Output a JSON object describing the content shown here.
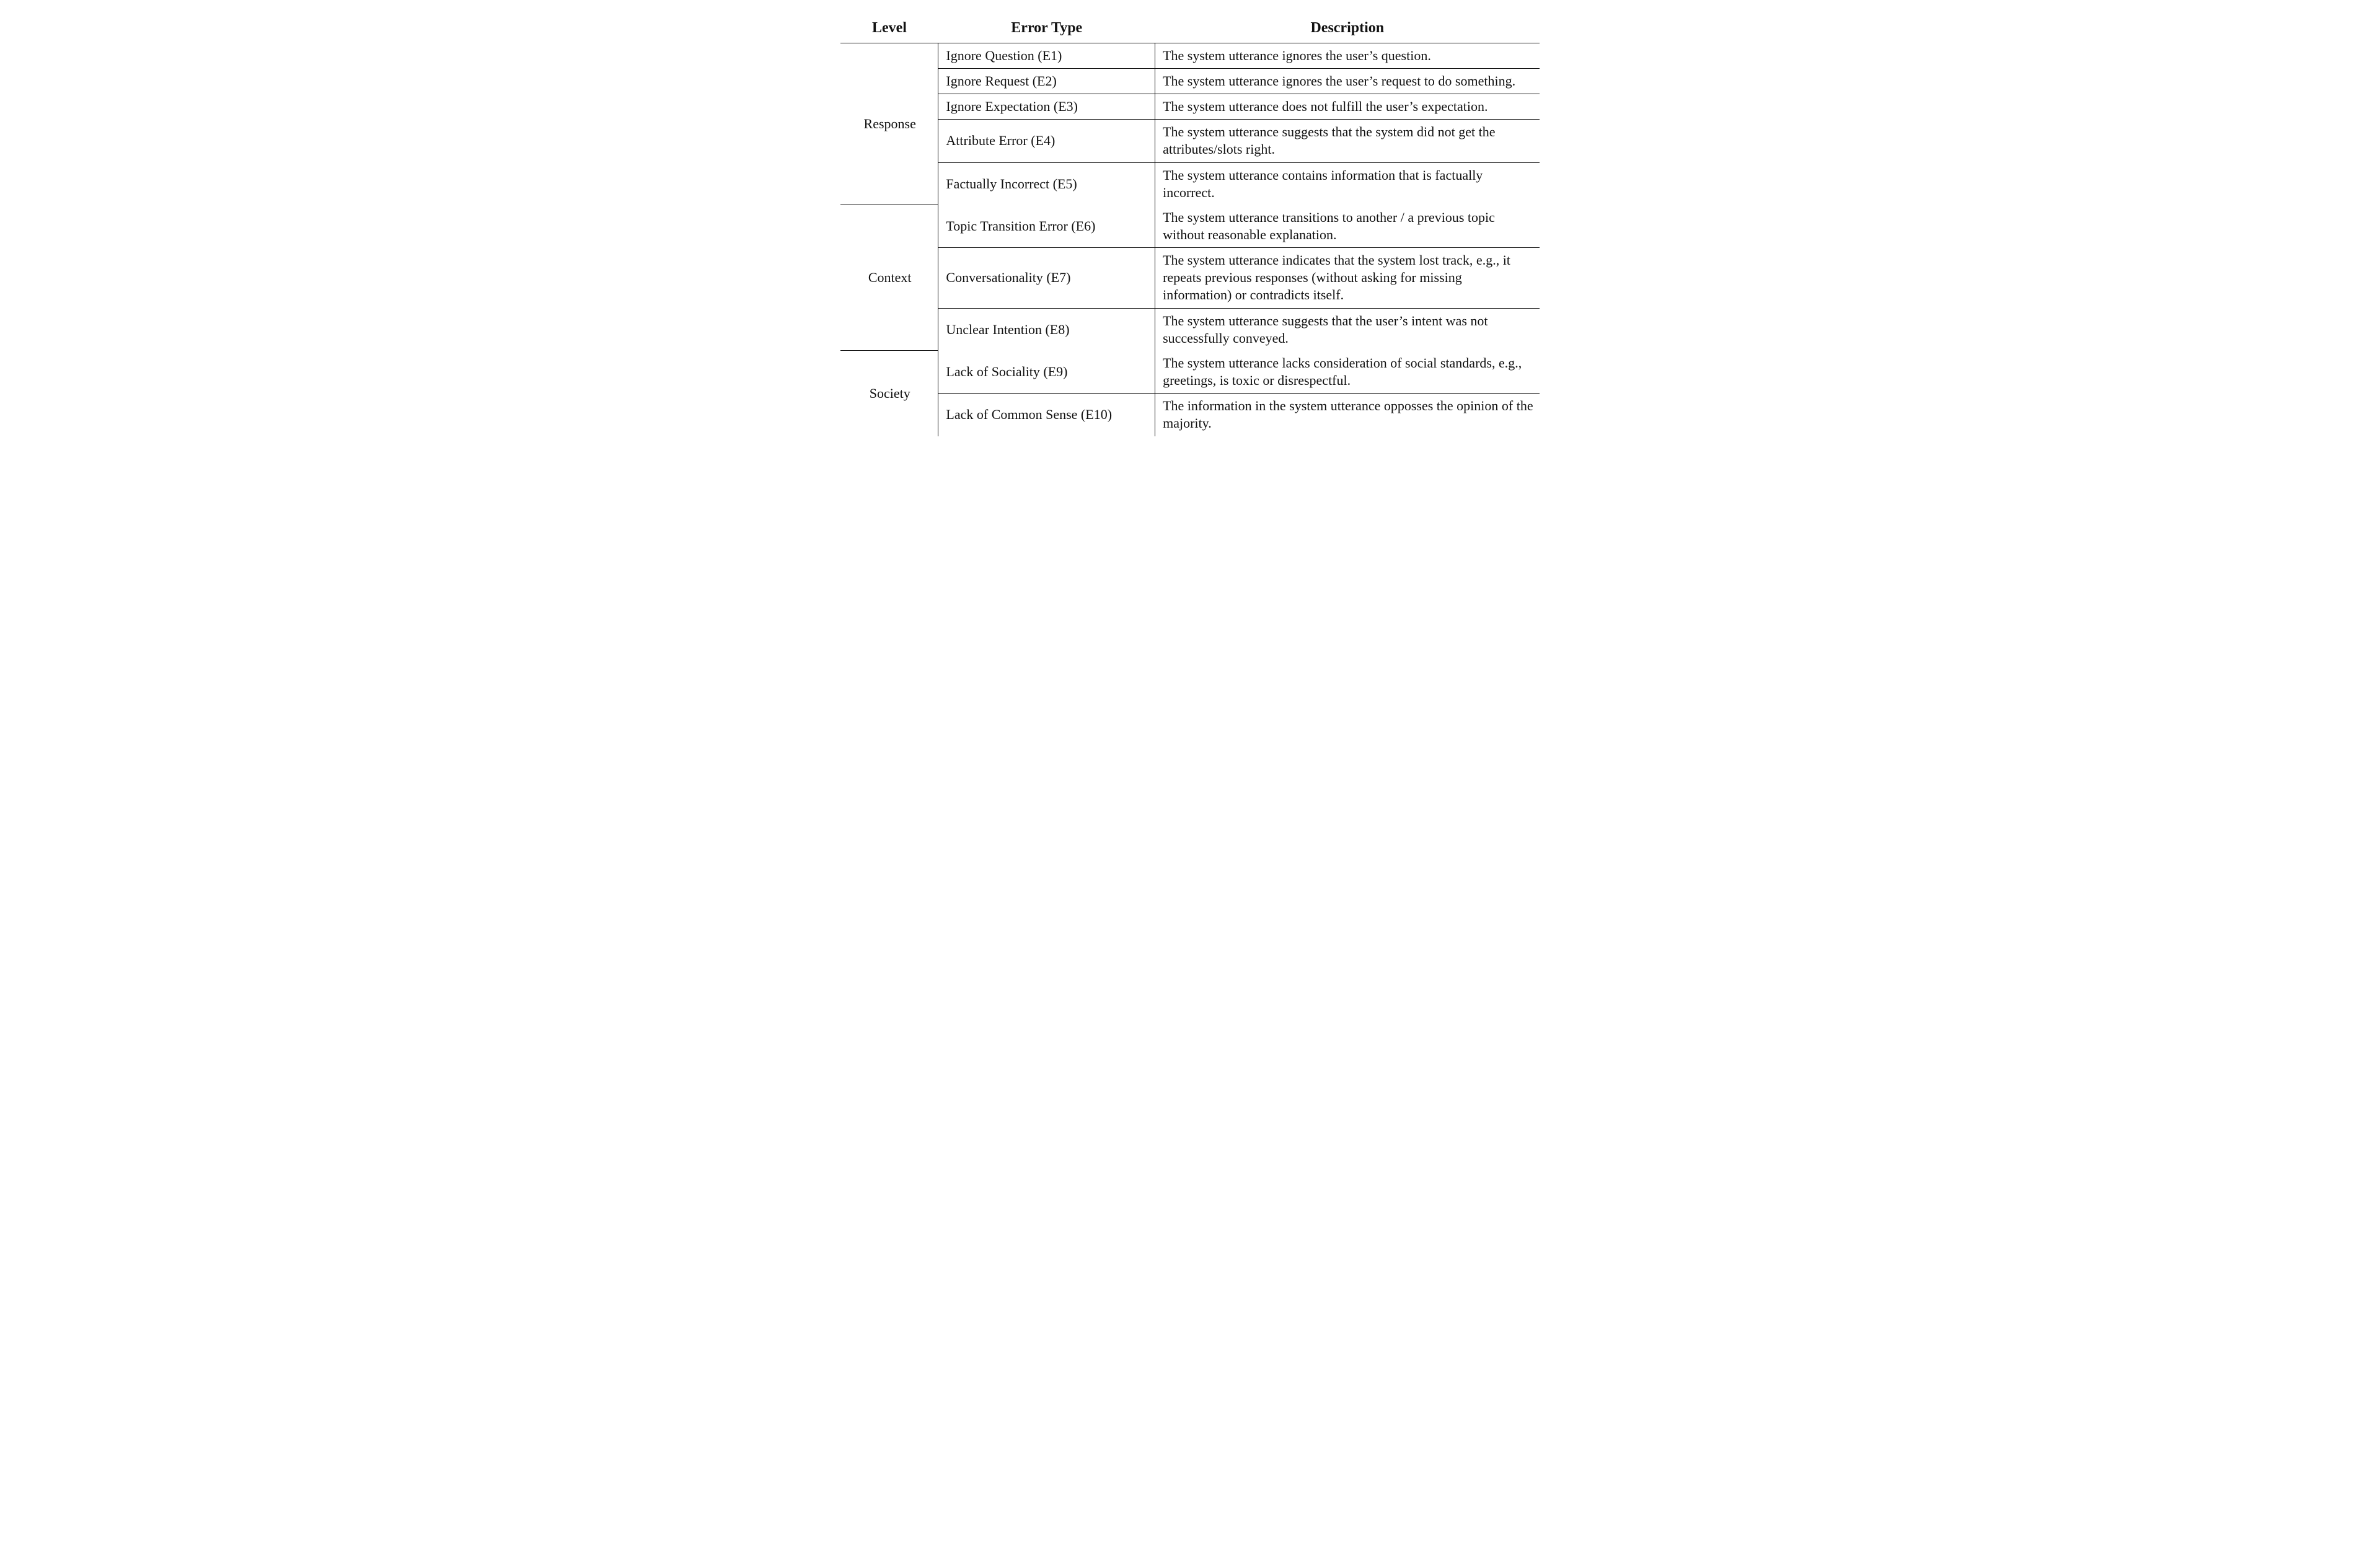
{
  "table": {
    "type": "table",
    "background_color": "#ffffff",
    "text_color": "#111111",
    "border_color": "#111111",
    "font_family": "Times New Roman",
    "header_fontsize_pt": 18,
    "body_fontsize_pt": 16,
    "header_fontweight": "bold",
    "columns": [
      {
        "key": "level",
        "label": "Level",
        "width_pct": 14,
        "align": "center"
      },
      {
        "key": "error_type",
        "label": "Error Type",
        "width_pct": 31,
        "align": "left"
      },
      {
        "key": "description",
        "label": "Description",
        "width_pct": 55,
        "align": "left"
      }
    ],
    "groups": [
      {
        "level": "Response",
        "rows": [
          {
            "error_type": "Ignore Question (E1)",
            "description": "The system utterance ignores the user’s question."
          },
          {
            "error_type": "Ignore Request (E2)",
            "description": "The system utterance ignores the user’s request to do something."
          },
          {
            "error_type": "Ignore Expectation (E3)",
            "description": "The system utterance does not fulfill the user’s expectation."
          },
          {
            "error_type": "Attribute Error (E4)",
            "description": "The system utterance suggests that the system did not get the attributes/slots right."
          },
          {
            "error_type": "Factually Incorrect (E5)",
            "description": "The system utterance contains information that is factually incorrect."
          }
        ]
      },
      {
        "level": "Context",
        "rows": [
          {
            "error_type": "Topic Transition Error (E6)",
            "description": "The system utterance transitions to another / a previous topic without reasonable explanation."
          },
          {
            "error_type": "Conversationality (E7)",
            "description": "The system utterance indicates that the system lost track, e.g., it repeats previous responses (without asking for missing information) or contradicts itself."
          },
          {
            "error_type": "Unclear Intention (E8)",
            "description": "The system utterance suggests that the user’s intent was not successfully conveyed."
          }
        ]
      },
      {
        "level": "Society",
        "rows": [
          {
            "error_type": "Lack of Sociality (E9)",
            "description": "The system utterance lacks consideration of social standards, e.g., greetings, is toxic or disrespectful."
          },
          {
            "error_type": "Lack of Common Sense (E10)",
            "description": "The information in the system utterance opposses the opinion of the majority."
          }
        ]
      }
    ]
  }
}
